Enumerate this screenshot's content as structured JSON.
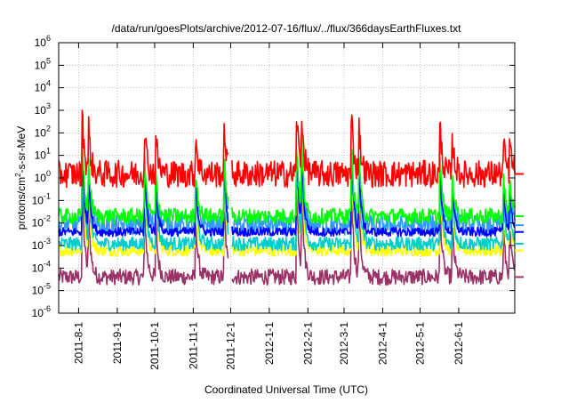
{
  "chart_data": {
    "type": "line",
    "title": "/data/run/goesPlots/archive/2012-07-16/flux/../flux/366daysEarthFluxes.txt",
    "xlabel": "Coordinated Universal Time (UTC)",
    "ylabel": "protons/cm²-s-sr-MeV",
    "ylabel_parts": {
      "base": "protons/cm",
      "sup": "2",
      "rest": "-s-sr-MeV"
    },
    "yscale": "log",
    "ylim": [
      "1e-6",
      "1e6"
    ],
    "xlim": [
      "2011-07-16",
      "2012-07-16"
    ],
    "grid": true,
    "x_ticks": [
      {
        "label": "2011-8-1",
        "date": "2011-08-01"
      },
      {
        "label": "2011-9-1",
        "date": "2011-09-01"
      },
      {
        "label": "2011-10-1",
        "date": "2011-10-01"
      },
      {
        "label": "2011-11-1",
        "date": "2011-11-01"
      },
      {
        "label": "2011-12-1",
        "date": "2011-12-01"
      },
      {
        "label": "2012-1-1",
        "date": "2012-01-01"
      },
      {
        "label": "2012-2-1",
        "date": "2012-02-01"
      },
      {
        "label": "2012-3-1",
        "date": "2012-03-01"
      },
      {
        "label": "2012-4-1",
        "date": "2012-04-01"
      },
      {
        "label": "2012-5-1",
        "date": "2012-05-01"
      },
      {
        "label": "2012-6-1",
        "date": "2012-06-01"
      }
    ],
    "y_ticks": [
      {
        "base": "10",
        "exp": "6"
      },
      {
        "base": "10",
        "exp": "5"
      },
      {
        "base": "10",
        "exp": "4"
      },
      {
        "base": "10",
        "exp": "3"
      },
      {
        "base": "10",
        "exp": "2"
      },
      {
        "base": "10",
        "exp": "1"
      },
      {
        "base": "10",
        "exp": "0"
      },
      {
        "base": "10",
        "exp": "-1"
      },
      {
        "base": "10",
        "exp": "-2"
      },
      {
        "base": "10",
        "exp": "-3"
      },
      {
        "base": "10",
        "exp": "-4"
      },
      {
        "base": "10",
        "exp": "-5"
      },
      {
        "base": "10",
        "exp": "-6"
      }
    ],
    "gaps": [
      [
        "2011-11-29",
        "2011-12-02"
      ]
    ],
    "events": [
      {
        "date": "2011-08-04",
        "peak_ratio": 1.0
      },
      {
        "date": "2011-08-09",
        "peak_ratio": 0.7
      },
      {
        "date": "2011-09-23",
        "peak_ratio": 0.75
      },
      {
        "date": "2011-10-02",
        "peak_ratio": 0.6
      },
      {
        "date": "2011-11-03",
        "peak_ratio": 0.65
      },
      {
        "date": "2011-11-26",
        "peak_ratio": 0.8
      },
      {
        "date": "2012-01-23",
        "peak_ratio": 1.0
      },
      {
        "date": "2012-01-27",
        "peak_ratio": 0.9
      },
      {
        "date": "2012-03-07",
        "peak_ratio": 1.0
      },
      {
        "date": "2012-03-13",
        "peak_ratio": 0.75
      },
      {
        "date": "2012-05-17",
        "peak_ratio": 0.8
      },
      {
        "date": "2012-05-27",
        "peak_ratio": 0.55
      },
      {
        "date": "2012-07-07",
        "peak_ratio": 0.5
      },
      {
        "date": "2012-07-12",
        "peak_ratio": 0.5
      }
    ],
    "series": [
      {
        "color": "#ff0000",
        "baseline": 1.5,
        "noise": 0.6,
        "peak": 1000
      },
      {
        "color": "#00ff00",
        "baseline": 0.02,
        "noise": 0.35,
        "peak": 60
      },
      {
        "color": "#0000ff",
        "baseline": 0.004,
        "noise": 0.2,
        "peak": 30
      },
      {
        "color": "#3399ff",
        "baseline": 0.008,
        "noise": 0.45,
        "peak": 20
      },
      {
        "color": "#00cccc",
        "baseline": 0.0012,
        "noise": 0.3,
        "peak": 10
      },
      {
        "color": "#ffff00",
        "baseline": 0.0006,
        "noise": 0.25,
        "peak": 5
      },
      {
        "color": "#993366",
        "baseline": 4e-05,
        "noise": 0.35,
        "peak": 0.5
      }
    ]
  }
}
